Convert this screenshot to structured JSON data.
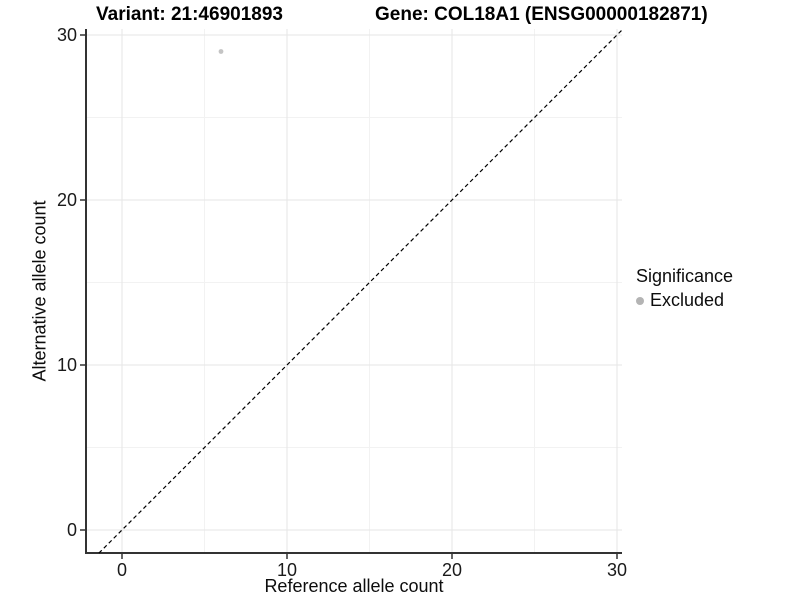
{
  "chart_data": {
    "type": "scatter",
    "title_left": "Variant: 21:46901893",
    "title_right": "Gene: COL18A1 (ENSG00000182871)",
    "xlabel": "Reference allele count",
    "ylabel": "Alternative allele count",
    "xlim": [
      0,
      30
    ],
    "ylim": [
      0,
      30
    ],
    "x_ticks": [
      0,
      10,
      20,
      30
    ],
    "y_ticks": [
      0,
      10,
      20,
      30
    ],
    "x_minor_ticks": [
      5,
      15,
      25
    ],
    "y_minor_ticks": [
      5,
      15,
      25
    ],
    "grid": true,
    "identity_line": {
      "style": "dashed",
      "slope": 1,
      "intercept": 0,
      "from": -1.4,
      "to": 30.3
    },
    "series": [
      {
        "name": "Excluded",
        "color": "#c4c4c4",
        "points": [
          {
            "x": 6,
            "y": 29
          }
        ]
      }
    ],
    "legend": {
      "position": "right",
      "title": "Significance",
      "items": [
        {
          "label": "Excluded",
          "color": "#b4b4b4"
        }
      ]
    },
    "colors": {
      "grid_major": "#e5e5e5",
      "grid_minor": "#f2f2f2",
      "axis_line": "#333333",
      "tick": "#333333",
      "tick_label": "#1a1a1a",
      "identity_line": "#000000"
    }
  }
}
